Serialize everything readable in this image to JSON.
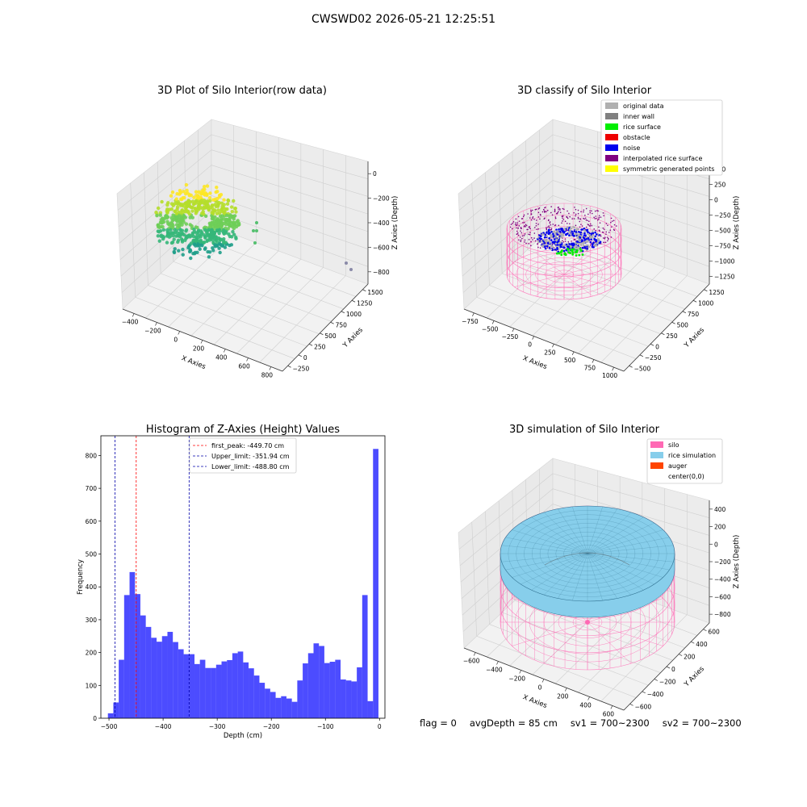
{
  "page": {
    "suptitle": "CWSWD02 2026-05-21 12:25:51"
  },
  "status": {
    "flag": "flag = 0",
    "avg_depth": "avgDepth = 85 cm",
    "sv1": "sv1 = 700~2300",
    "sv2": "sv2 = 700~2300"
  },
  "plots": {
    "raw": {
      "title": "3D Plot of Silo Interior(row data)",
      "xlabel": "X Axies",
      "ylabel": "Y Axies",
      "zlabel": "Z Axies (Depth)",
      "xticks": [
        "−400",
        "−200",
        "0",
        "200",
        "400",
        "600",
        "800"
      ],
      "yticks": [
        "−250",
        "0",
        "250",
        "500",
        "750",
        "1000",
        "1250",
        "1500"
      ],
      "zticks": [
        "0",
        "−200",
        "−400",
        "−600",
        "−800"
      ],
      "colormap": [
        "#fde725",
        "#b5de2b",
        "#6ece58",
        "#35b779",
        "#1f9e89"
      ]
    },
    "classify": {
      "title": "3D classify of Silo Interior",
      "xlabel": "X Axies",
      "ylabel": "Y Axies",
      "zlabel": "Z Axies (Depth)",
      "xticks": [
        "−750",
        "−500",
        "−250",
        "0",
        "250",
        "500",
        "750",
        "1000"
      ],
      "yticks": [
        "−500",
        "−250",
        "0",
        "250",
        "500",
        "750",
        "1000",
        "1250"
      ],
      "zticks": [
        "500",
        "250",
        "0",
        "−250",
        "−500",
        "−750",
        "−1000",
        "−1250"
      ],
      "legend": [
        {
          "label": "original data",
          "color": "#b0b0b0"
        },
        {
          "label": "inner wall",
          "color": "#808080"
        },
        {
          "label": "rice surface",
          "color": "#00ee00"
        },
        {
          "label": "obstacle",
          "color": "#ee0000"
        },
        {
          "label": "noise",
          "color": "#0000ee"
        },
        {
          "label": "interpolated rice surface",
          "color": "#800080"
        },
        {
          "label": "symmetric generated points",
          "color": "#ffff00"
        }
      ]
    },
    "simulation": {
      "title": "3D simulation of Silo Interior",
      "xlabel": "X Axies",
      "ylabel": "Y Axies",
      "zlabel": "Z Axies (Depth)",
      "xticks": [
        "−600",
        "−400",
        "−200",
        "0",
        "200",
        "400",
        "600"
      ],
      "yticks": [
        "−600",
        "−400",
        "−200",
        "0",
        "200",
        "400",
        "600"
      ],
      "zticks": [
        "400",
        "200",
        "0",
        "−200",
        "−400",
        "−600",
        "−800"
      ],
      "legend": [
        {
          "label": "silo",
          "color": "#ff69b4"
        },
        {
          "label": "rice simulation",
          "color": "#87ceeb"
        },
        {
          "label": "auger",
          "color": "#ff4500"
        },
        {
          "label": "center(0,0)",
          "color": "#ffffff"
        }
      ]
    }
  },
  "chart_data": {
    "type": "bar",
    "title": "Histogram of Z-Axies (Height) Values",
    "xlabel": "Depth (cm)",
    "ylabel": "Frequency",
    "xlim": [
      -515,
      10
    ],
    "ylim": [
      0,
      860
    ],
    "xticks": [
      -500,
      -400,
      -300,
      -200,
      -100,
      0
    ],
    "yticks": [
      0,
      100,
      200,
      300,
      400,
      500,
      600,
      700,
      800
    ],
    "bar_color": "#0000ff",
    "bin_width": 10,
    "bins": [
      {
        "x": -497,
        "v": 15
      },
      {
        "x": -487,
        "v": 48
      },
      {
        "x": -477,
        "v": 178
      },
      {
        "x": -467,
        "v": 375
      },
      {
        "x": -457,
        "v": 445
      },
      {
        "x": -447,
        "v": 378
      },
      {
        "x": -437,
        "v": 313
      },
      {
        "x": -427,
        "v": 278
      },
      {
        "x": -417,
        "v": 245
      },
      {
        "x": -407,
        "v": 233
      },
      {
        "x": -397,
        "v": 250
      },
      {
        "x": -387,
        "v": 263
      },
      {
        "x": -377,
        "v": 232
      },
      {
        "x": -367,
        "v": 210
      },
      {
        "x": -357,
        "v": 195
      },
      {
        "x": -347,
        "v": 195
      },
      {
        "x": -337,
        "v": 165
      },
      {
        "x": -327,
        "v": 178
      },
      {
        "x": -317,
        "v": 153
      },
      {
        "x": -307,
        "v": 153
      },
      {
        "x": -297,
        "v": 163
      },
      {
        "x": -287,
        "v": 173
      },
      {
        "x": -277,
        "v": 177
      },
      {
        "x": -267,
        "v": 198
      },
      {
        "x": -257,
        "v": 203
      },
      {
        "x": -247,
        "v": 170
      },
      {
        "x": -237,
        "v": 152
      },
      {
        "x": -227,
        "v": 130
      },
      {
        "x": -217,
        "v": 108
      },
      {
        "x": -207,
        "v": 90
      },
      {
        "x": -197,
        "v": 80
      },
      {
        "x": -187,
        "v": 62
      },
      {
        "x": -177,
        "v": 67
      },
      {
        "x": -167,
        "v": 60
      },
      {
        "x": -157,
        "v": 50
      },
      {
        "x": -147,
        "v": 115
      },
      {
        "x": -137,
        "v": 167
      },
      {
        "x": -127,
        "v": 198
      },
      {
        "x": -117,
        "v": 228
      },
      {
        "x": -107,
        "v": 220
      },
      {
        "x": -97,
        "v": 168
      },
      {
        "x": -87,
        "v": 172
      },
      {
        "x": -77,
        "v": 178
      },
      {
        "x": -67,
        "v": 118
      },
      {
        "x": -57,
        "v": 115
      },
      {
        "x": -47,
        "v": 112
      },
      {
        "x": -37,
        "v": 155
      },
      {
        "x": -27,
        "v": 375
      },
      {
        "x": -17,
        "v": 52
      },
      {
        "x": -7,
        "v": 820
      }
    ],
    "lines": [
      {
        "label": "first_peak: -449.70 cm",
        "x": -449.7,
        "color": "#ff0000"
      },
      {
        "label": "Upper_limit: -351.94 cm",
        "x": -351.94,
        "color": "#0000aa"
      },
      {
        "label": "Lower_limit: -488.80 cm",
        "x": -488.8,
        "color": "#0000aa"
      }
    ],
    "legend_position": "upper-center"
  }
}
